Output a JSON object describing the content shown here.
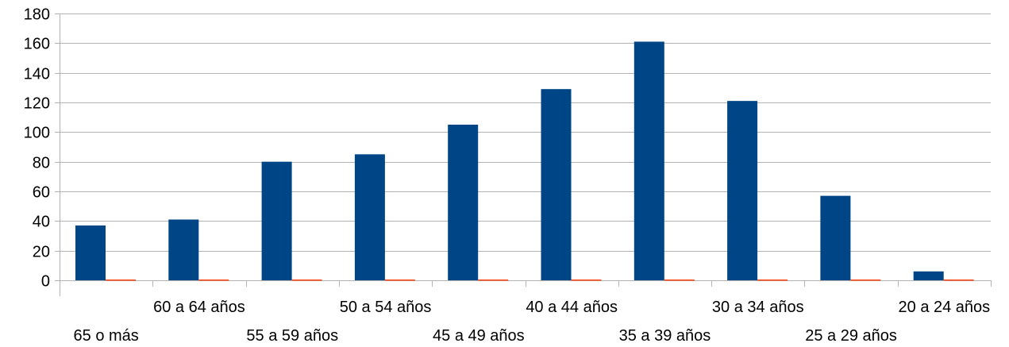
{
  "chart_data": {
    "type": "bar",
    "title": "",
    "xlabel": "",
    "ylabel": "",
    "ylim": [
      0,
      180
    ],
    "yticks": [
      0,
      20,
      40,
      60,
      80,
      100,
      120,
      140,
      160,
      180
    ],
    "grid": true,
    "legend": "none",
    "categories": [
      "65 o más",
      "60 a 64 años",
      "55 a 59 años",
      "50 a 54 años",
      "45 a 49 años",
      "40 a 44 años",
      "35 a 39 años",
      "30 a 34 años",
      "25 a 29 años",
      "20 a 24 años"
    ],
    "series": [
      {
        "values": [
          37,
          41,
          80,
          85,
          105,
          129,
          161,
          121,
          57,
          6
        ],
        "color": "#004586"
      },
      {
        "values": [
          0,
          0,
          0,
          0,
          0,
          0,
          0,
          0,
          0,
          0
        ],
        "color": "#ff420e"
      }
    ]
  }
}
